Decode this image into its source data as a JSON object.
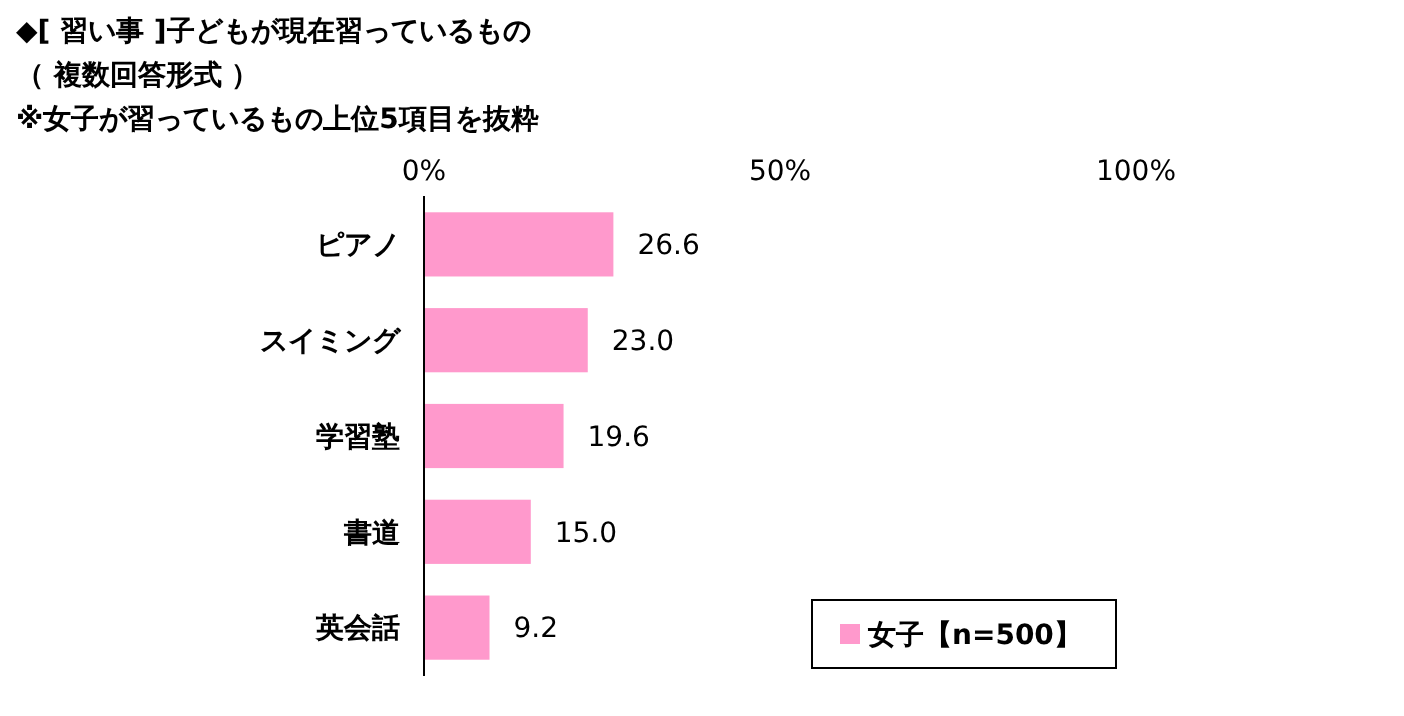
{
  "chart_data": {
    "type": "bar",
    "orientation": "horizontal",
    "title": "◆[ 習い事 ]子どもが現在習っているもの",
    "subtitle": "（ 複数回答形式 ）",
    "annotations": [
      "※女子が習っているもの上位5項目を抜粋"
    ],
    "categories": [
      "ピアノ",
      "スイミング",
      "学習塾",
      "書道",
      "英会話"
    ],
    "series": [
      {
        "name": "女子【n=500】",
        "color": "#ff99cc",
        "values": [
          26.6,
          23.0,
          19.6,
          15.0,
          9.2
        ]
      }
    ],
    "value_labels": [
      "26.6",
      "23.0",
      "19.6",
      "15.0",
      "9.2"
    ],
    "xlim": [
      0,
      100
    ],
    "xticks": [
      {
        "value": 0,
        "label": "0%"
      },
      {
        "value": 50,
        "label": "50%"
      },
      {
        "value": 100,
        "label": "100%"
      }
    ],
    "legend": "bottom right",
    "grid": false
  }
}
